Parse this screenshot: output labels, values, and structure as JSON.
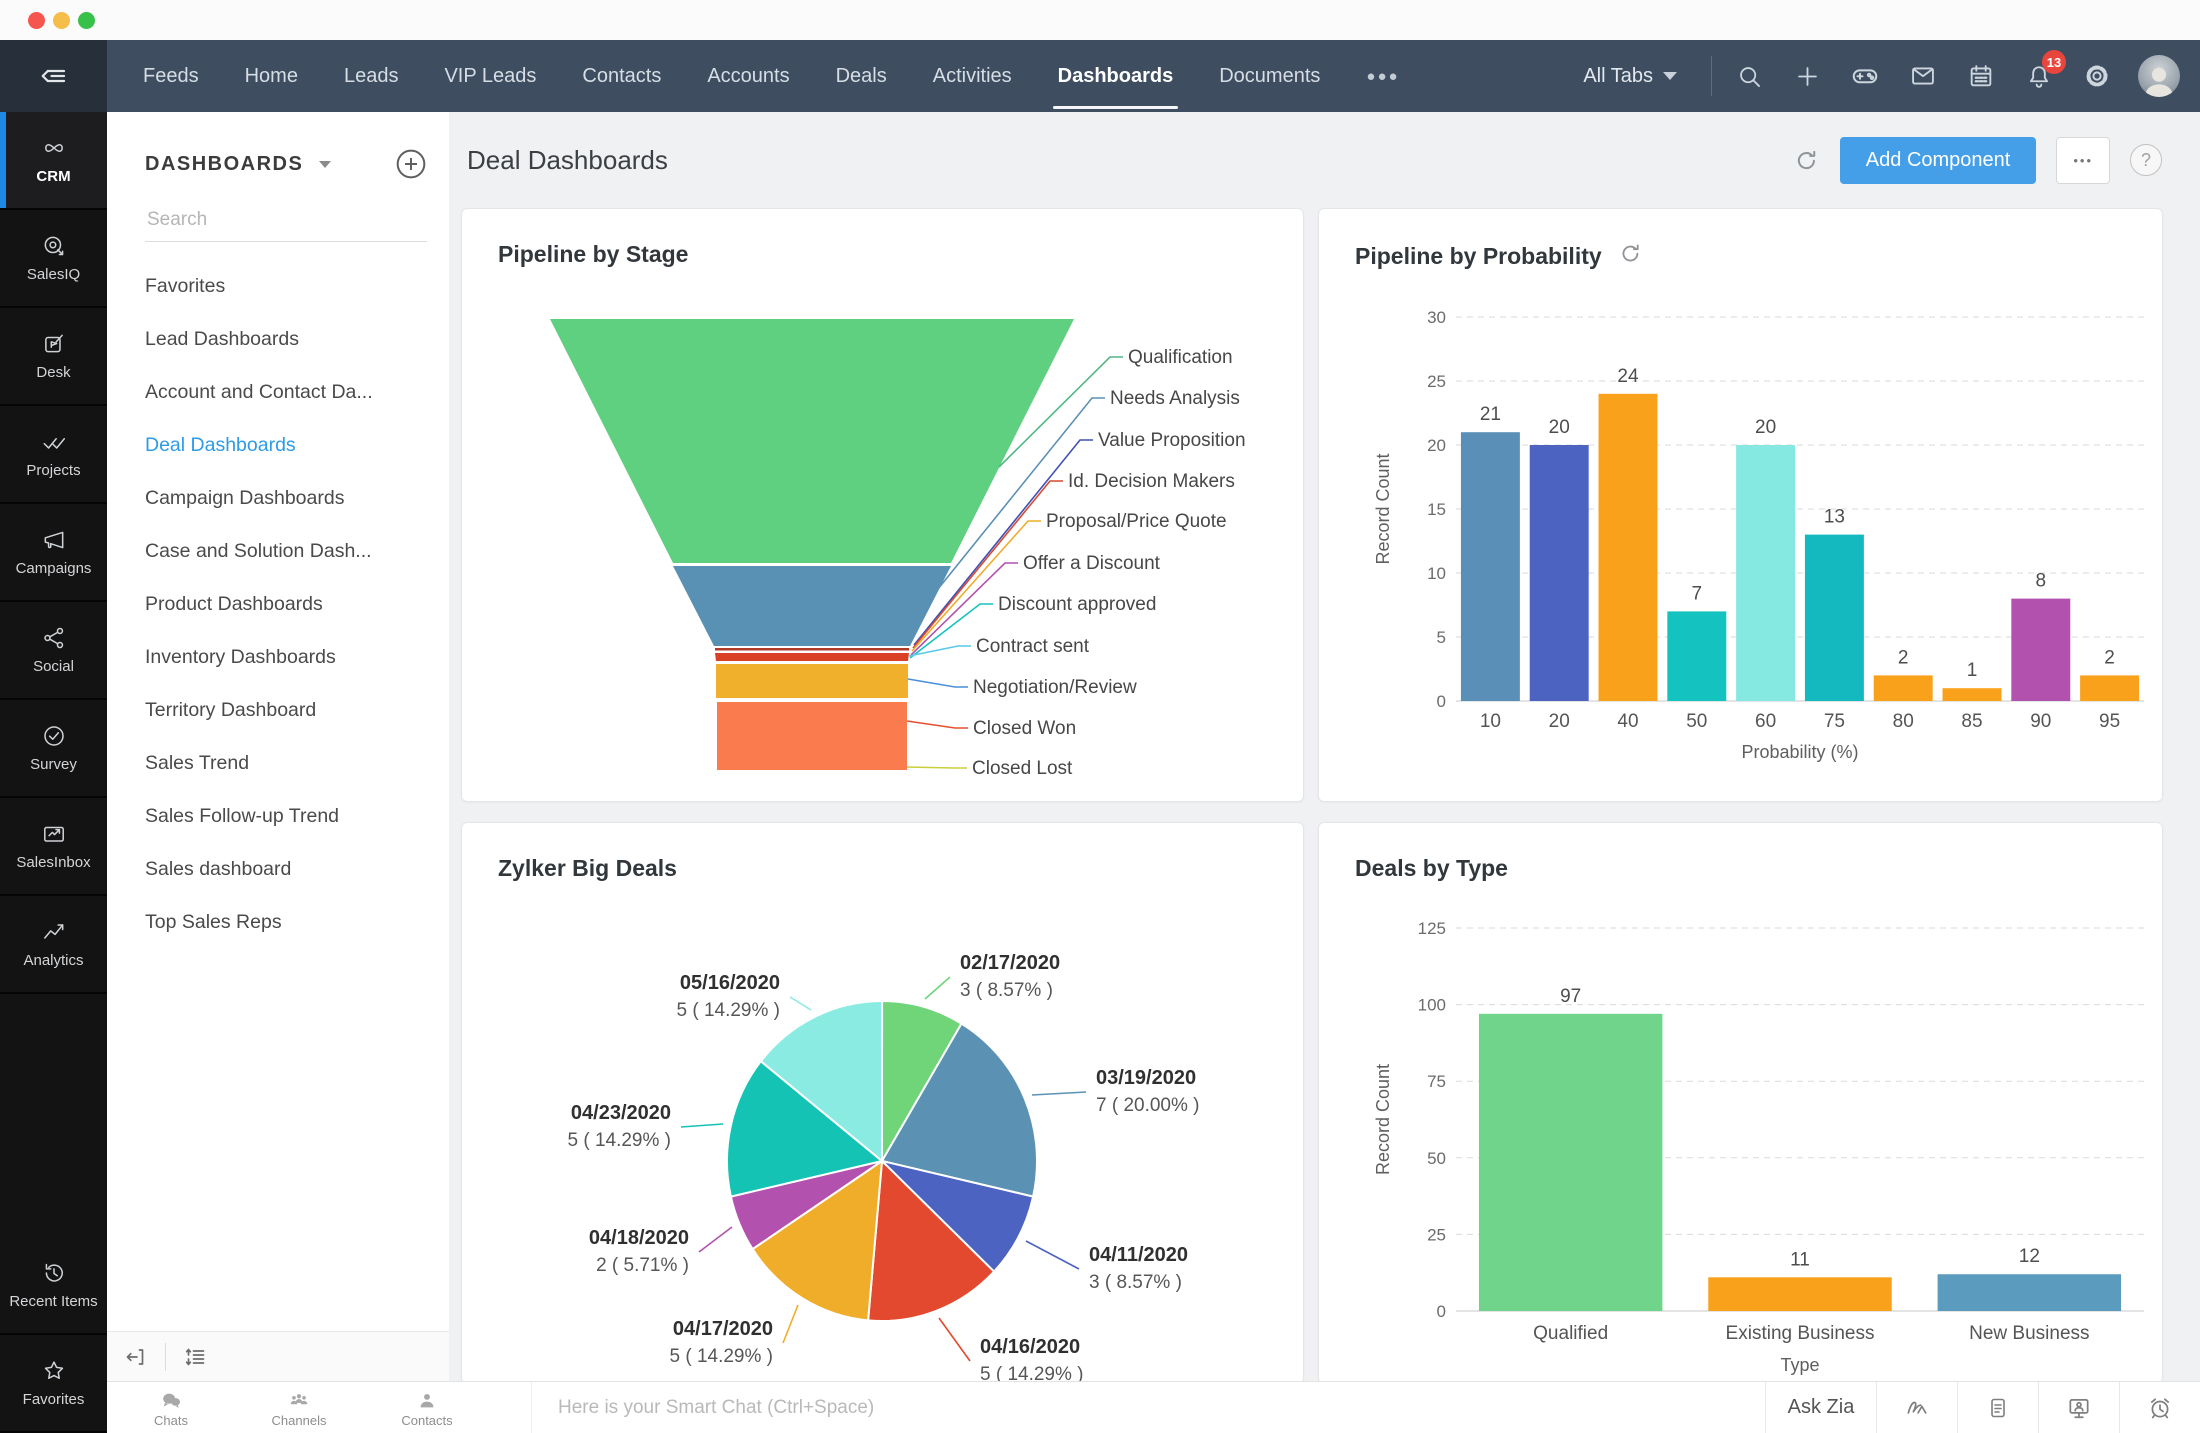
{
  "topnav": {
    "tabs": [
      "Feeds",
      "Home",
      "Leads",
      "VIP Leads",
      "Contacts",
      "Accounts",
      "Deals",
      "Activities",
      "Dashboards",
      "Documents"
    ],
    "active_tab": "Dashboards",
    "more_label": "●●●",
    "all_tabs_label": "All Tabs",
    "notification_count": "13"
  },
  "appbar": {
    "items": [
      "CRM",
      "SalesIQ",
      "Desk",
      "Projects",
      "Campaigns",
      "Social",
      "Survey",
      "SalesInbox",
      "Analytics"
    ],
    "bottom_items": [
      "Recent Items",
      "Favorites"
    ],
    "active_item": "CRM"
  },
  "panel": {
    "title": "DASHBOARDS",
    "search_placeholder": "Search",
    "items": [
      "Favorites",
      "Lead Dashboards",
      "Account and Contact Da...",
      "Deal Dashboards",
      "Campaign Dashboards",
      "Case and Solution Dash...",
      "Product Dashboards",
      "Inventory Dashboards",
      "Territory Dashboard",
      "Sales Trend",
      "Sales Follow-up Trend",
      "Sales dashboard",
      "Top Sales Reps"
    ],
    "active_item": "Deal Dashboards"
  },
  "header": {
    "title": "Deal Dashboards",
    "add_component_label": "Add Component",
    "more_label": "•••",
    "help_label": "?"
  },
  "chatbar": {
    "tabs": [
      "Chats",
      "Channels",
      "Contacts"
    ],
    "input_placeholder": "Here is your Smart Chat (Ctrl+Space)",
    "ask_zia_label": "Ask Zia"
  },
  "ui_colors": {
    "accent_blue": "#459fe8",
    "link_blue": "#2e9be6",
    "nav_bg": "#3e4e60",
    "badge_red": "#e8453c",
    "active_bar_blue": "#1e88e5"
  },
  "chart_data": [
    {
      "type": "funnel",
      "title": "Pipeline by Stage",
      "stages": [
        {
          "label": "Qualification",
          "color": "#5fcf80",
          "leader": "#52b787"
        },
        {
          "label": "Needs Analysis",
          "color": "#5991b5",
          "leader": "#5a90b4"
        },
        {
          "label": "Value Proposition",
          "color": "#3f51b5",
          "leader": "#3f51b5"
        },
        {
          "label": "Id. Decision Makers",
          "color": "#b03a28",
          "leader": "#d84a31"
        },
        {
          "label": "Proposal/Price Quote",
          "color": "#efad2a",
          "leader": "#efad2a"
        },
        {
          "label": "Offer a Discount",
          "color": "#b351ae",
          "leader": "#b351ae"
        },
        {
          "label": "Discount approved",
          "color": "#14c3bf",
          "leader": "#14c3bf"
        },
        {
          "label": "Contract sent",
          "color": "#d94026",
          "leader": "#59c8e6"
        },
        {
          "label": "Negotiation/Review",
          "color": "#f0b02c",
          "leader": "#4a90d9"
        },
        {
          "label": "Closed Won",
          "color": "#fa7c4e",
          "leader": "#e2502f"
        },
        {
          "label": "Closed Lost",
          "color": "#c9cf3a",
          "leader": "#c9cf3a"
        }
      ]
    },
    {
      "type": "bar",
      "title": "Pipeline by Probability",
      "categories": [
        "10",
        "20",
        "40",
        "50",
        "60",
        "75",
        "80",
        "85",
        "90",
        "95"
      ],
      "values": [
        21,
        20,
        24,
        7,
        20,
        13,
        2,
        1,
        8,
        2
      ],
      "colors": [
        "#5a8fb8",
        "#4c63c2",
        "#f9a11b",
        "#14c3bf",
        "#85e9e2",
        "#14b8bf",
        "#f9a11b",
        "#f9a11b",
        "#b351ae",
        "#f9a11b"
      ],
      "xlabel": "Probability (%)",
      "ylabel": "Record Count",
      "yticks": [
        0,
        5,
        10,
        15,
        20,
        25,
        30
      ],
      "ylim": [
        0,
        30
      ],
      "grid": "dashed"
    },
    {
      "type": "pie",
      "title": "Zylker Big Deals",
      "slices": [
        {
          "label": "02/17/2020",
          "value_label": "3 ( 8.57% )",
          "pct": 8.57,
          "color": "#70d479"
        },
        {
          "label": "03/19/2020",
          "value_label": "7 ( 20.00% )",
          "pct": 20.0,
          "color": "#5b92b4"
        },
        {
          "label": "04/11/2020",
          "value_label": "3 ( 8.57% )",
          "pct": 8.57,
          "color": "#4c63c2"
        },
        {
          "label": "04/16/2020",
          "value_label": "5 ( 14.29% )",
          "pct": 14.29,
          "color": "#e2492f"
        },
        {
          "label": "04/17/2020",
          "value_label": "5 ( 14.29% )",
          "pct": 14.29,
          "color": "#f0ad2a"
        },
        {
          "label": "04/18/2020",
          "value_label": "2 ( 5.71% )",
          "pct": 5.71,
          "color": "#b351ae"
        },
        {
          "label": "04/23/2020",
          "value_label": "5 ( 14.29% )",
          "pct": 14.29,
          "color": "#14c3b4"
        },
        {
          "label": "05/16/2020",
          "value_label": "5 ( 14.29% )",
          "pct": 14.29,
          "color": "#8aebe2"
        }
      ]
    },
    {
      "type": "bar",
      "title": "Deals by Type",
      "categories": [
        "Qualified",
        "Existing Business",
        "New Business"
      ],
      "values": [
        97,
        11,
        12
      ],
      "colors": [
        "#70d48a",
        "#f9a11b",
        "#5b9bbd"
      ],
      "xlabel": "Type",
      "ylabel": "Record Count",
      "yticks": [
        0,
        25,
        50,
        75,
        100,
        125
      ],
      "ylim": [
        0,
        125
      ],
      "grid": "dashed"
    }
  ]
}
